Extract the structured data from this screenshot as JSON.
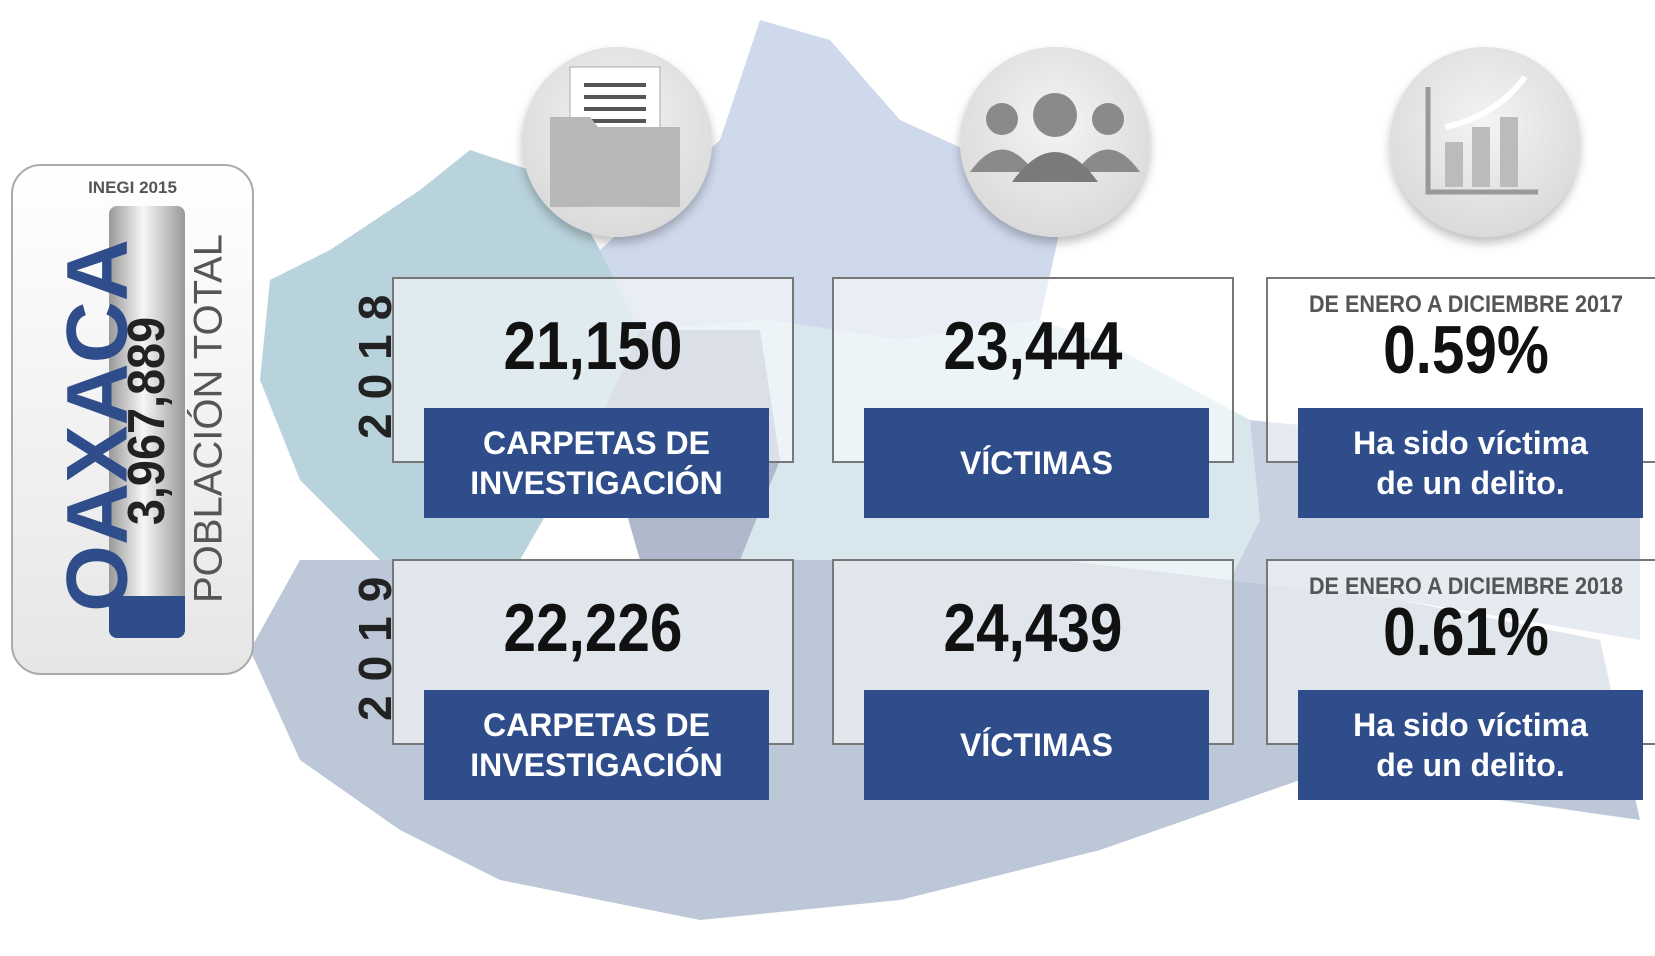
{
  "sidebar": {
    "source": "INEGI 2015",
    "state": "OAXACA",
    "population": "3,967,889",
    "population_label": "POBLACIÓN TOTAL"
  },
  "rows": [
    {
      "year": "2018",
      "cards": [
        {
          "value": "21,150",
          "label": "CARPETAS DE\nINVESTIGACIÓN"
        },
        {
          "value": "23,444",
          "label": "VÍCTIMAS"
        },
        {
          "note": "DE ENERO A DICIEMBRE 2017",
          "value": "0.59%",
          "label": "Ha sido víctima\nde un delito."
        }
      ]
    },
    {
      "year": "2019",
      "cards": [
        {
          "value": "22,226",
          "label": "CARPETAS DE\nINVESTIGACIÓN"
        },
        {
          "value": "24,439",
          "label": "VÍCTIMAS"
        },
        {
          "note": "DE ENERO A DICIEMBRE 2018",
          "value": "0.61%",
          "label": "Ha sido víctima\nde un delito."
        }
      ]
    }
  ]
}
